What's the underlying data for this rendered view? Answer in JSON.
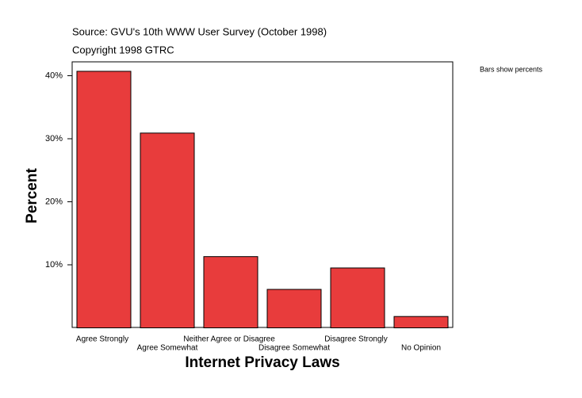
{
  "chart_data": {
    "type": "bar",
    "title": "Source: GVU's 10th WWW User Survey (October 1998)",
    "subtitle": "Copyright 1998 GTRC",
    "annotation": "Bars show percents",
    "xlabel": "Internet Privacy Laws",
    "ylabel": "Percent",
    "categories": [
      "Agree Strongly",
      "Agree Somewhat",
      "Neither Agree or Disagree",
      "Disagree Somewhat",
      "Disagree Strongly",
      "No Opinion"
    ],
    "values": [
      40.7,
      30.9,
      11.3,
      6.1,
      9.5,
      1.8
    ],
    "color": "#e83c3c",
    "ylim": [
      0,
      42.2
    ],
    "yticks": [
      {
        "value": 10,
        "label": "10%"
      },
      {
        "value": 20,
        "label": "20%"
      },
      {
        "value": 30,
        "label": "30%"
      },
      {
        "value": 40,
        "label": "40%"
      }
    ],
    "grid": false
  }
}
